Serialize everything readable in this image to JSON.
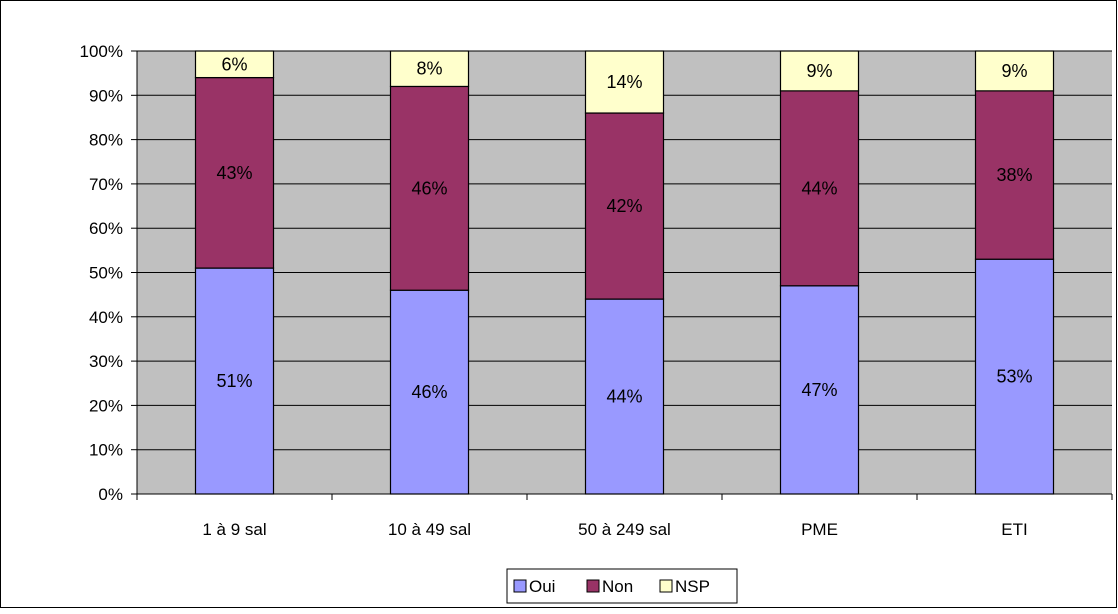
{
  "colors": {
    "oui": "#9999ff",
    "non": "#993366",
    "nsp": "#ffffcc",
    "plot_area": "#c0c0c0",
    "border": "#000000"
  },
  "chart_data": {
    "type": "bar",
    "stacked": true,
    "percent_stacked": true,
    "categories": [
      "1 à 9 sal",
      "10 à 49 sal",
      "50 à 249 sal",
      "PME",
      "ETI"
    ],
    "series": [
      {
        "name": "Oui",
        "values": [
          51,
          46,
          44,
          47,
          53
        ],
        "labels": [
          "51%",
          "46%",
          "44%",
          "47%",
          "53%"
        ]
      },
      {
        "name": "Non",
        "values": [
          43,
          46,
          42,
          44,
          38
        ],
        "labels": [
          "43%",
          "46%",
          "42%",
          "44%",
          "38%"
        ]
      },
      {
        "name": "NSP",
        "values": [
          6,
          8,
          14,
          9,
          9
        ],
        "labels": [
          "6%",
          "8%",
          "14%",
          "9%",
          "9%"
        ]
      }
    ],
    "yticks": [
      "0%",
      "10%",
      "20%",
      "30%",
      "40%",
      "50%",
      "60%",
      "70%",
      "80%",
      "90%",
      "100%"
    ],
    "ylim": [
      0,
      100
    ],
    "grid": true,
    "legend_position": "bottom"
  }
}
